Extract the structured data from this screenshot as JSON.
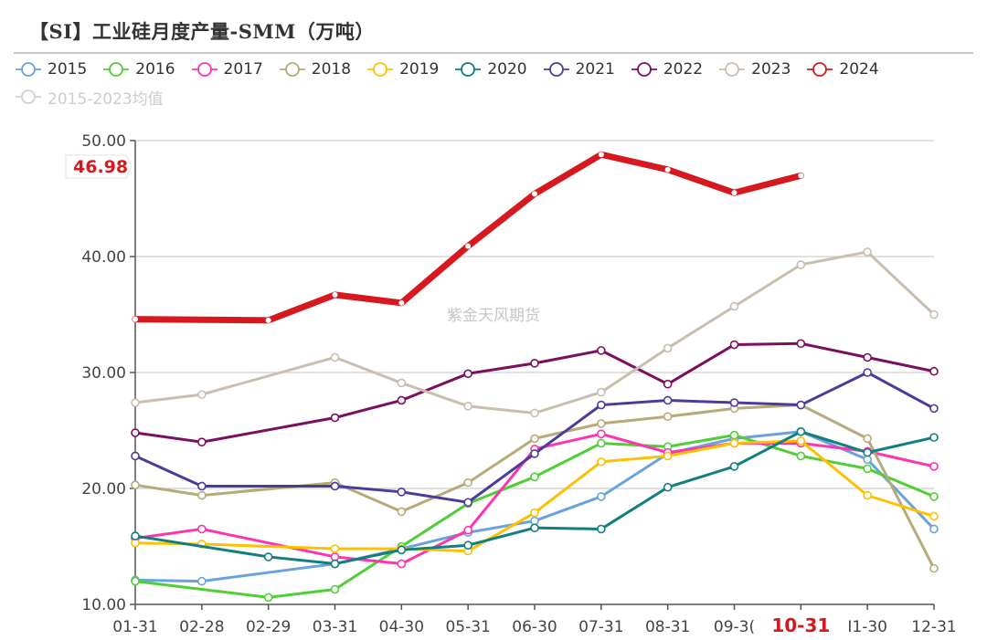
{
  "chart_data": {
    "type": "line",
    "title": "【SI】工业硅月度产量-SMM（万吨）",
    "xlabel": "",
    "ylabel": "",
    "ylim": [
      10,
      50
    ],
    "yticks": [
      "10.00",
      "20.00",
      "30.00",
      "40.00",
      "50.00"
    ],
    "ytick_values": [
      10,
      20,
      30,
      40,
      50
    ],
    "grid": true,
    "legend_position": "top",
    "categories": [
      "01-31",
      "02-28",
      "02-29",
      "03-31",
      "04-30",
      "05-31",
      "06-30",
      "07-31",
      "08-31",
      "09-30",
      "10-31",
      "11-30",
      "12-31"
    ],
    "xtick_labels": [
      "01-31",
      "02-28",
      "02-29",
      "03-31",
      "04-30",
      "05-31",
      "06-30",
      "07-31",
      "08-31",
      "09-3(",
      "10-31",
      "I1-30",
      "12-31"
    ],
    "highlight_category": "10-31",
    "latest_value_label": "46.98",
    "watermark": "紫金天风期货",
    "series": [
      {
        "name": "2015",
        "color": "#6aa2dc",
        "values": [
          12.1,
          12.0,
          null,
          13.5,
          14.8,
          16.2,
          17.2,
          19.3,
          23.0,
          24.3,
          24.9,
          22.5,
          16.5
        ]
      },
      {
        "name": "2016",
        "color": "#4fcf35",
        "values": [
          12.0,
          null,
          10.6,
          11.3,
          15.0,
          18.7,
          21.0,
          23.9,
          23.6,
          24.6,
          22.8,
          21.7,
          19.3
        ]
      },
      {
        "name": "2017",
        "color": "#ff33b0",
        "values": [
          15.7,
          16.5,
          null,
          14.1,
          13.5,
          16.4,
          23.4,
          24.7,
          23.1,
          23.9,
          23.9,
          23.2,
          21.9
        ]
      },
      {
        "name": "2018",
        "color": "#b8aa78",
        "values": [
          20.3,
          19.4,
          null,
          20.5,
          18.0,
          20.5,
          24.3,
          25.6,
          26.2,
          26.9,
          27.2,
          24.3,
          13.1
        ]
      },
      {
        "name": "2019",
        "color": "#ffc000",
        "values": [
          15.3,
          15.2,
          null,
          14.8,
          14.8,
          14.6,
          17.9,
          22.3,
          22.8,
          23.9,
          24.1,
          19.4,
          17.6
        ]
      },
      {
        "name": "2020",
        "color": "#0f7f80",
        "values": [
          15.9,
          null,
          14.1,
          13.5,
          14.7,
          15.1,
          16.6,
          16.5,
          20.1,
          21.9,
          24.9,
          23.1,
          24.4
        ]
      },
      {
        "name": "2021",
        "color": "#4b3b9a",
        "values": [
          22.8,
          20.2,
          null,
          20.2,
          19.7,
          18.8,
          23.0,
          27.2,
          27.6,
          27.4,
          27.2,
          30.0,
          26.9
        ]
      },
      {
        "name": "2022",
        "color": "#7b0f5e",
        "values": [
          24.8,
          24.0,
          null,
          26.1,
          27.6,
          29.9,
          30.8,
          31.9,
          29.0,
          32.4,
          32.5,
          31.3,
          30.1
        ]
      },
      {
        "name": "2023",
        "color": "#cabfae",
        "values": [
          27.4,
          28.1,
          null,
          31.3,
          29.1,
          27.1,
          26.5,
          28.3,
          32.1,
          35.7,
          39.3,
          40.4,
          35.0
        ]
      },
      {
        "name": "2024",
        "color": "#d7191f",
        "bold": true,
        "values": [
          34.6,
          null,
          34.5,
          36.7,
          36.0,
          40.9,
          45.4,
          48.8,
          47.5,
          45.5,
          46.98,
          null,
          null
        ]
      },
      {
        "name": "2015-2023均值",
        "color": "#cccccc",
        "hidden": true,
        "values": []
      }
    ]
  }
}
